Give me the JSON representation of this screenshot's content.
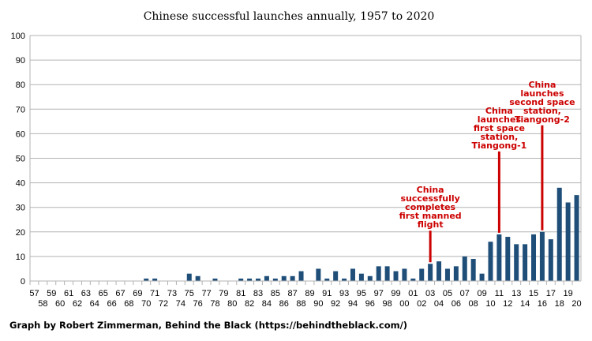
{
  "chart_data": {
    "type": "bar",
    "title": "Chinese successful launches annually, 1957 to 2020",
    "xlabel": "",
    "ylabel": "",
    "ylim": [
      0,
      100
    ],
    "y_ticks": [
      0,
      10,
      20,
      30,
      40,
      50,
      60,
      70,
      80,
      90,
      100
    ],
    "grid": "horizontal",
    "bar_color": "#1f4e79",
    "categories": [
      "57",
      "58",
      "59",
      "60",
      "61",
      "62",
      "63",
      "64",
      "65",
      "66",
      "67",
      "68",
      "69",
      "70",
      "71",
      "72",
      "73",
      "74",
      "75",
      "76",
      "77",
      "78",
      "79",
      "80",
      "81",
      "82",
      "83",
      "84",
      "85",
      "86",
      "87",
      "88",
      "89",
      "90",
      "91",
      "92",
      "93",
      "94",
      "95",
      "96",
      "97",
      "98",
      "99",
      "00",
      "01",
      "02",
      "03",
      "04",
      "05",
      "06",
      "07",
      "08",
      "09",
      "10",
      "11",
      "12",
      "13",
      "14",
      "15",
      "16",
      "17",
      "18",
      "19",
      "20"
    ],
    "values": [
      0,
      0,
      0,
      0,
      0,
      0,
      0,
      0,
      0,
      0,
      0,
      0,
      0,
      1,
      1,
      0,
      0,
      0,
      3,
      2,
      0,
      1,
      0,
      0,
      1,
      1,
      1,
      2,
      1,
      2,
      2,
      4,
      0,
      5,
      1,
      4,
      1,
      5,
      3,
      2,
      6,
      6,
      4,
      5,
      1,
      5,
      7,
      8,
      5,
      6,
      10,
      9,
      3,
      16,
      19,
      18,
      15,
      15,
      19,
      20,
      17,
      38,
      32,
      35
    ],
    "annotations": [
      {
        "category": "03",
        "text_lines": [
          "China",
          "successfully",
          "completes",
          "first manned",
          "flight"
        ],
        "color": "#cc0000"
      },
      {
        "category": "11",
        "text_lines": [
          "China",
          "launches",
          "first space",
          "station,",
          "Tiangong-1"
        ],
        "color": "#cc0000"
      },
      {
        "category": "16",
        "text_lines": [
          "China",
          "launches",
          "second space",
          "station,",
          "Tiangong-2"
        ],
        "color": "#cc0000"
      }
    ]
  },
  "credit": "Graph by Robert Zimmerman, Behind the Black (https://behindtheblack.com/)"
}
